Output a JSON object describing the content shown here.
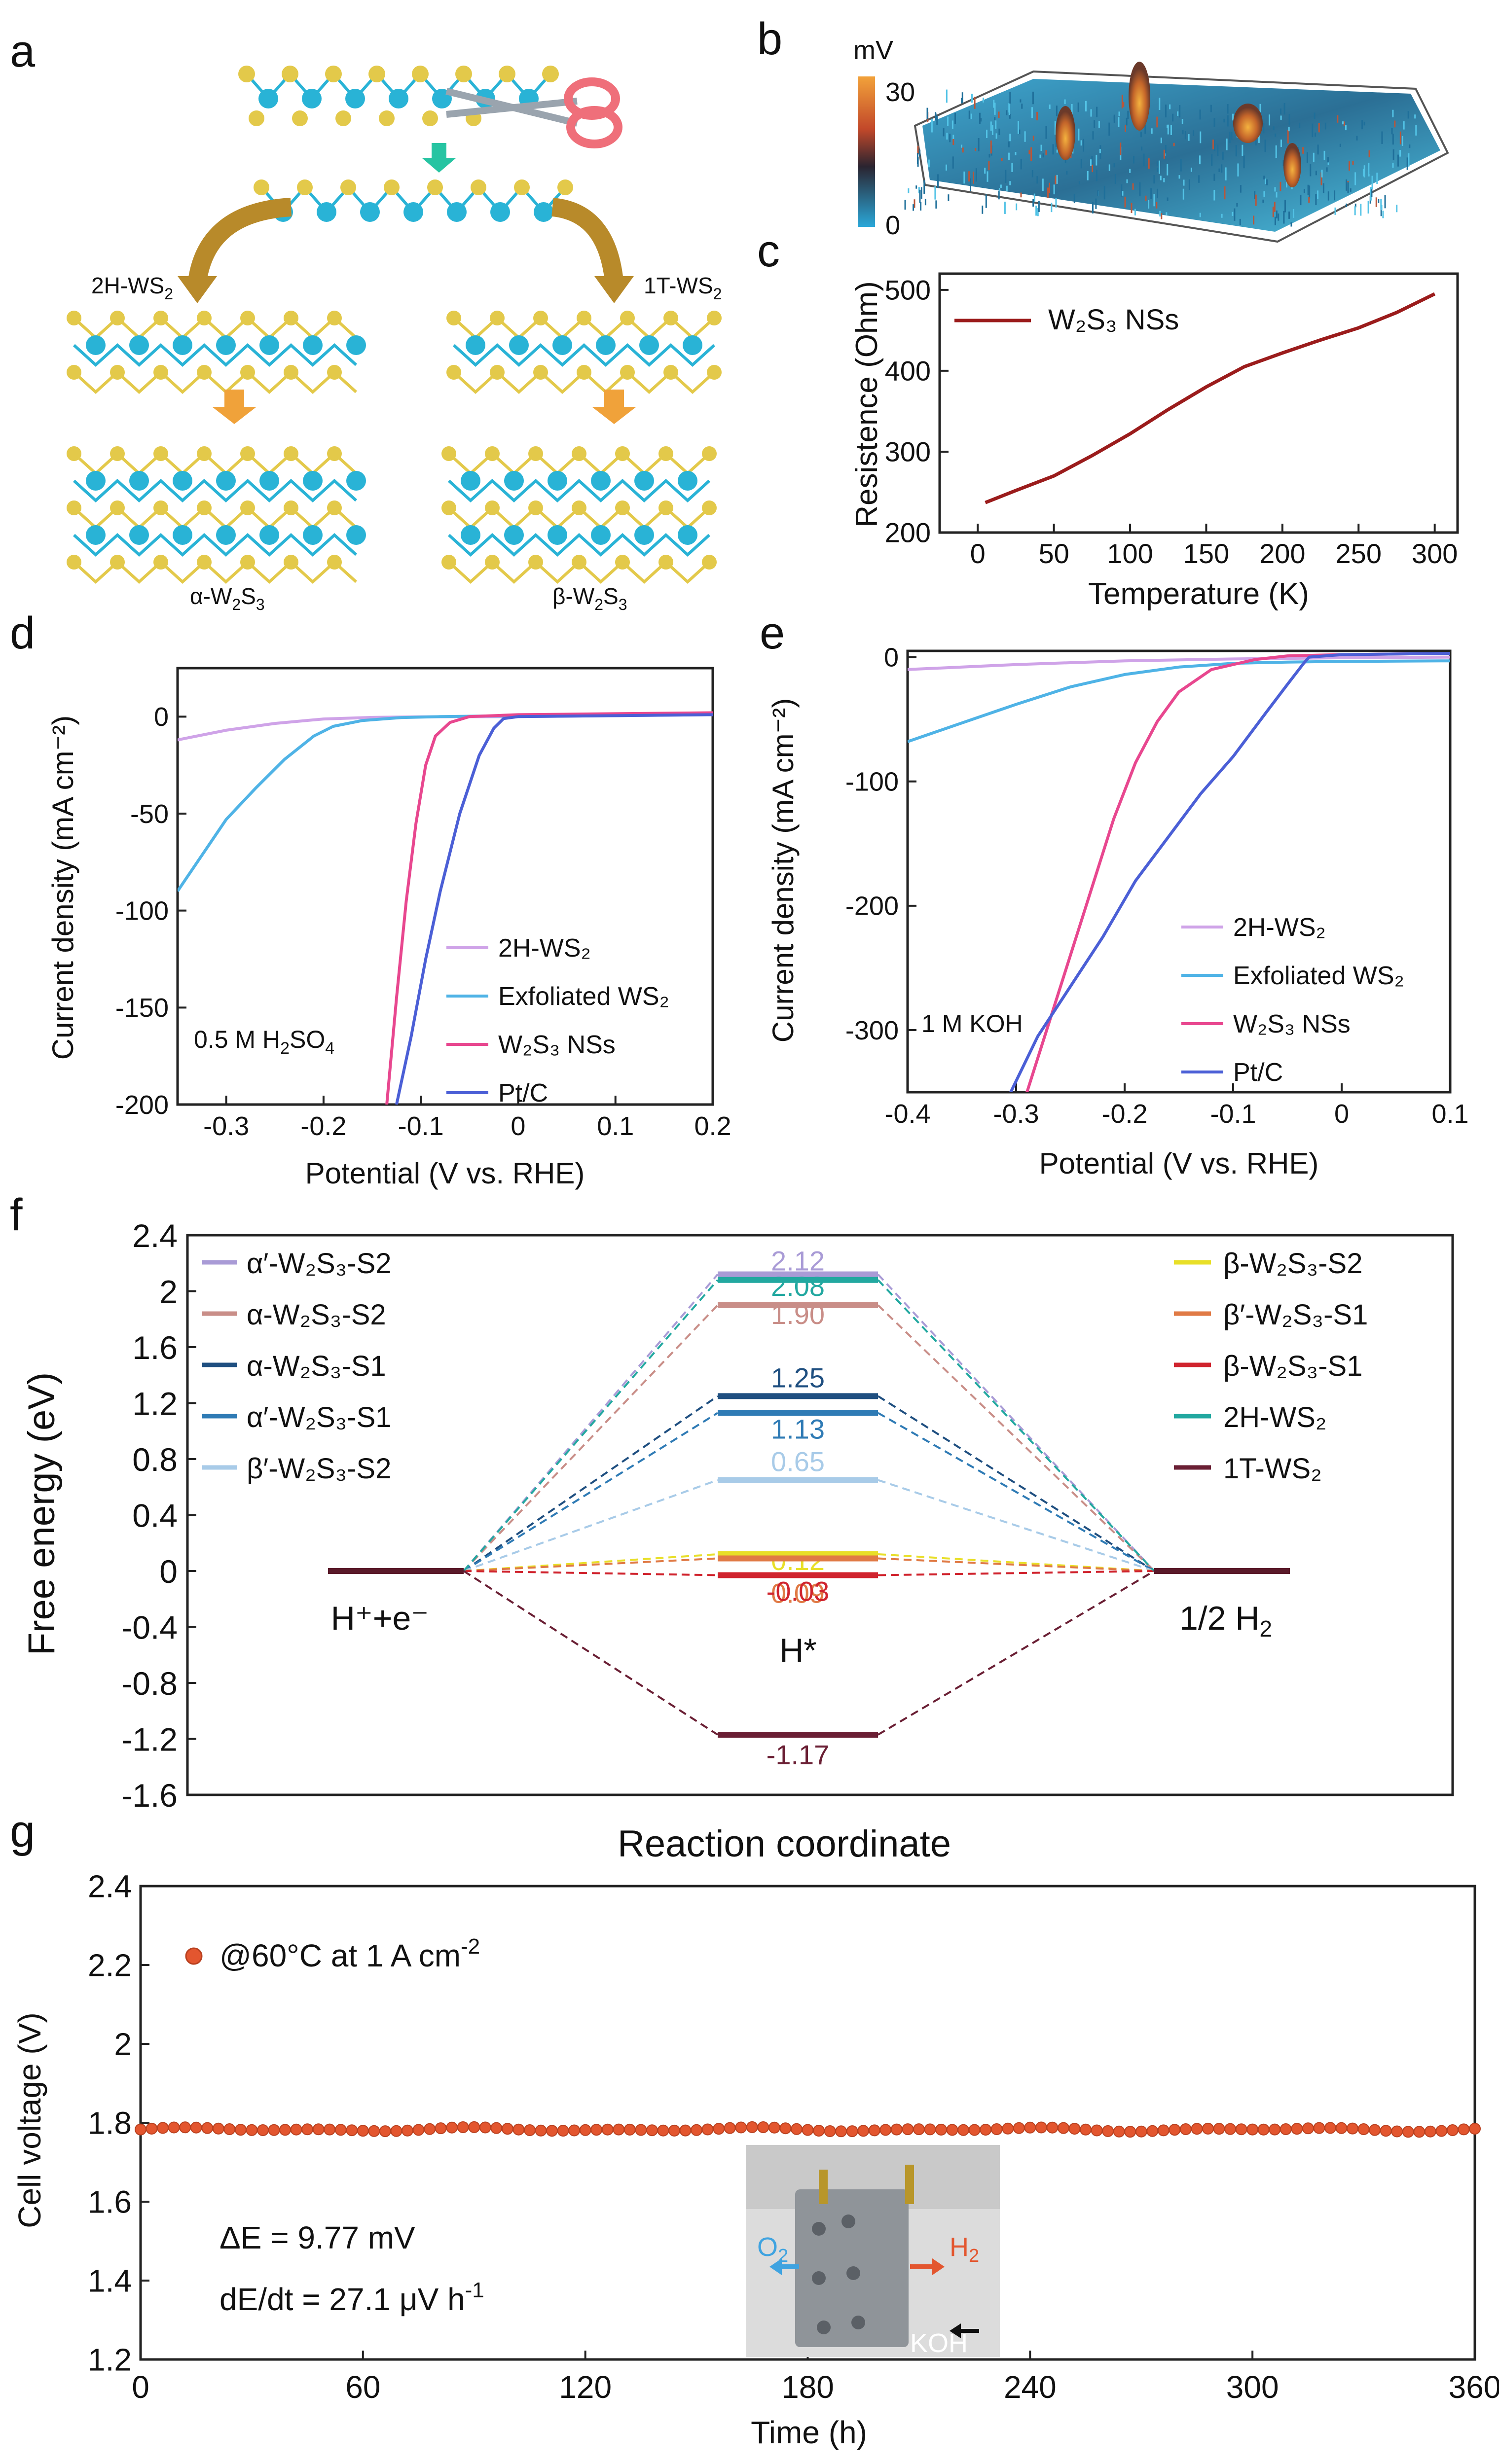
{
  "colors": {
    "h2ws2": "#cfa3e8",
    "exf": "#4fb3e6",
    "w2s3": "#e8478f",
    "ptc": "#4b5fd6",
    "panel_c_line": "#9b1c1c",
    "stability": "#e3562f",
    "tungsten": "#29b3d6",
    "sulfur": "#e3c94a"
  },
  "panels": {
    "a": {
      "label": "a",
      "left_phase": "2H-WS",
      "left_sub": "2",
      "right_phase": "1T-WS",
      "right_sub": "2",
      "bottom_left": [
        "α-W",
        "2",
        "S",
        "3"
      ],
      "bottom_right": [
        "β-W",
        "2",
        "S",
        "3"
      ]
    },
    "b": {
      "label": "b",
      "unit": "mV",
      "max": "30",
      "min": "0"
    },
    "c": {
      "label": "c"
    },
    "d": {
      "label": "d",
      "annotation": [
        "0.5 M H",
        "2",
        "SO",
        "4"
      ]
    },
    "e": {
      "label": "e",
      "annotation": "1 M KOH"
    },
    "f": {
      "label": "f",
      "left_state": "H⁺+e⁻",
      "middle_state": "H*",
      "right_state": "1/2 H",
      "right_sub": "2"
    },
    "g": {
      "label": "g",
      "delta_e": "ΔE = 9.77 mV",
      "dedt": "dE/dt = 27.1 μV h",
      "dedt_sup": "-1",
      "photo_o2": "O",
      "photo_o2_sub": "2",
      "photo_h2": "H",
      "photo_h2_sub": "2",
      "photo_koh": "KOH"
    }
  },
  "chart_data": [
    {
      "id": "c",
      "type": "line",
      "title": "",
      "xlabel": "Temperature (K)",
      "ylabel": "Resistence (Ohm)",
      "xlim": [
        -25,
        315
      ],
      "ylim": [
        200,
        520
      ],
      "xticks": [
        0,
        50,
        100,
        150,
        200,
        250,
        300
      ],
      "yticks": [
        200,
        300,
        400,
        500
      ],
      "series": [
        {
          "name": "W₂S₃ NSs",
          "x": [
            5,
            25,
            50,
            75,
            100,
            125,
            150,
            175,
            200,
            225,
            250,
            275,
            300
          ],
          "y": [
            237,
            252,
            270,
            295,
            322,
            352,
            380,
            405,
            422,
            438,
            453,
            472,
            495
          ]
        }
      ]
    },
    {
      "id": "d",
      "type": "line",
      "xlabel": "Potential (V vs. RHE)",
      "ylabel": "Current density (mA cm⁻²)",
      "xlim": [
        -0.35,
        0.2
      ],
      "ylim": [
        -200,
        25
      ],
      "xticks": [
        -0.3,
        -0.2,
        -0.1,
        0,
        0.1,
        0.2
      ],
      "yticks": [
        0,
        -50,
        -100,
        -150,
        -200
      ],
      "series": [
        {
          "name": "2H-WS₂",
          "x": [
            -0.35,
            -0.3,
            -0.25,
            -0.2,
            -0.15,
            -0.1,
            0,
            0.1,
            0.2
          ],
          "y": [
            -12,
            -7,
            -3.5,
            -1.2,
            -0.4,
            -0.1,
            0,
            0.5,
            1
          ]
        },
        {
          "name": "Exfoliated WS₂",
          "x": [
            -0.35,
            -0.3,
            -0.27,
            -0.24,
            -0.21,
            -0.19,
            -0.16,
            -0.12,
            -0.08,
            0,
            0.1,
            0.2
          ],
          "y": [
            -90,
            -53,
            -37,
            -22,
            -10,
            -5,
            -2,
            -0.5,
            0,
            0.5,
            1,
            1.5
          ]
        },
        {
          "name": "W₂S₃ NSs",
          "x": [
            -0.135,
            -0.125,
            -0.115,
            -0.105,
            -0.095,
            -0.085,
            -0.07,
            -0.05,
            0,
            0.1,
            0.2
          ],
          "y": [
            -200,
            -145,
            -95,
            -55,
            -25,
            -10,
            -3,
            0,
            1,
            1.5,
            2
          ]
        },
        {
          "name": "Pt/C",
          "x": [
            -0.125,
            -0.11,
            -0.095,
            -0.08,
            -0.06,
            -0.04,
            -0.025,
            -0.015,
            0,
            0.1,
            0.2
          ],
          "y": [
            -200,
            -165,
            -125,
            -90,
            -50,
            -20,
            -6,
            -1,
            0,
            0.5,
            1
          ]
        }
      ]
    },
    {
      "id": "e",
      "type": "line",
      "xlabel": "Potential (V vs. RHE)",
      "ylabel": "Current density (mA cm⁻²)",
      "xlim": [
        -0.4,
        0.1
      ],
      "ylim": [
        -350,
        5
      ],
      "xticks": [
        -0.4,
        -0.3,
        -0.2,
        -0.1,
        0,
        0.1
      ],
      "yticks": [
        0,
        -100,
        -200,
        -300
      ],
      "series": [
        {
          "name": "2H-WS₂",
          "x": [
            -0.4,
            -0.3,
            -0.2,
            -0.1,
            0,
            0.1
          ],
          "y": [
            -10,
            -6,
            -3,
            -1.5,
            -0.5,
            0
          ]
        },
        {
          "name": "Exfoliated WS₂",
          "x": [
            -0.4,
            -0.35,
            -0.3,
            -0.25,
            -0.2,
            -0.15,
            -0.1,
            -0.05,
            0,
            0.1
          ],
          "y": [
            -68,
            -53,
            -38,
            -24,
            -14,
            -8,
            -5,
            -4,
            -3.5,
            -3
          ]
        },
        {
          "name": "W₂S₃ NSs",
          "x": [
            -0.29,
            -0.27,
            -0.25,
            -0.23,
            -0.21,
            -0.19,
            -0.17,
            -0.15,
            -0.12,
            -0.08,
            -0.05,
            0,
            0.1
          ],
          "y": [
            -350,
            -295,
            -240,
            -185,
            -130,
            -85,
            -52,
            -28,
            -10,
            -2,
            1,
            2,
            3
          ]
        },
        {
          "name": "Pt/C",
          "x": [
            -0.305,
            -0.28,
            -0.25,
            -0.22,
            -0.19,
            -0.16,
            -0.13,
            -0.1,
            -0.07,
            -0.05,
            -0.035,
            -0.03,
            0,
            0.1
          ],
          "y": [
            -350,
            -305,
            -265,
            -225,
            -180,
            -145,
            -110,
            -80,
            -45,
            -22,
            -5,
            0,
            2,
            3
          ]
        }
      ]
    },
    {
      "id": "f",
      "type": "line",
      "title": "",
      "xlabel": "Reaction coordinate",
      "ylabel": "Free energy (eV)",
      "ylim": [
        -1.6,
        2.4
      ],
      "yticks": [
        2.4,
        2.0,
        1.6,
        1.2,
        0.8,
        0.4,
        0,
        -0.4,
        -0.8,
        -1.2,
        -1.6
      ],
      "ytick_labels": [
        "2.4",
        "2",
        "1.6",
        "1.2",
        "0.8",
        "0.4",
        "0",
        "-0.4",
        "-0.8",
        "-1.2",
        "-1.6"
      ],
      "series": [
        {
          "name": "α′-W₂S₃-S2",
          "value": 2.12,
          "label": "2.12",
          "color": "#a99bd6",
          "legend": "left"
        },
        {
          "name": "α-W₂S₃-S2",
          "value": 1.9,
          "label": "1.90",
          "color": "#c98e88",
          "legend": "left"
        },
        {
          "name": "α-W₂S₃-S1",
          "value": 1.25,
          "label": "1.25",
          "color": "#1f4f80",
          "legend": "left"
        },
        {
          "name": "α′-W₂S₃-S1",
          "value": 1.13,
          "label": "1.13",
          "color": "#2f7bb5",
          "legend": "left"
        },
        {
          "name": "β′-W₂S₃-S2",
          "value": 0.65,
          "label": "0.65",
          "color": "#a8cbe8",
          "legend": "left"
        },
        {
          "name": "β-W₂S₃-S2",
          "value": 0.12,
          "label": "0.12",
          "color": "#e8df28",
          "legend": "right"
        },
        {
          "name": "β′-W₂S₃-S1",
          "value": 0.09,
          "label": "0.09",
          "color": "#e07a45",
          "legend": "right"
        },
        {
          "name": "β-W₂S₃-S1",
          "value": -0.03,
          "label": "-0.03",
          "color": "#d0242e",
          "legend": "right"
        },
        {
          "name": "2H-WS₂",
          "value": 2.08,
          "label": "2.08",
          "color": "#22a8a0",
          "legend": "right"
        },
        {
          "name": "1T-WS₂",
          "value": -1.17,
          "label": "-1.17",
          "color": "#6a1f34",
          "legend": "right"
        }
      ]
    },
    {
      "id": "g",
      "type": "scatter",
      "xlabel": "Time (h)",
      "ylabel": "Cell voltage (V)",
      "xlim": [
        0,
        360
      ],
      "ylim": [
        1.2,
        2.4
      ],
      "xticks": [
        0,
        60,
        120,
        180,
        240,
        300,
        360
      ],
      "yticks": [
        1.2,
        1.4,
        1.6,
        1.8,
        2.0,
        2.2,
        2.4
      ],
      "ytick_labels": [
        "1.2",
        "1.4",
        "1.6",
        "1.8",
        "2",
        "2.2",
        "2.4"
      ],
      "series": [
        {
          "name": "@60°C at 1 A cm",
          "name_sup": "-2",
          "x_start": 0,
          "x_end": 360,
          "x_step": 3,
          "y_mean": 1.783,
          "ripple": 0.006
        }
      ]
    }
  ]
}
